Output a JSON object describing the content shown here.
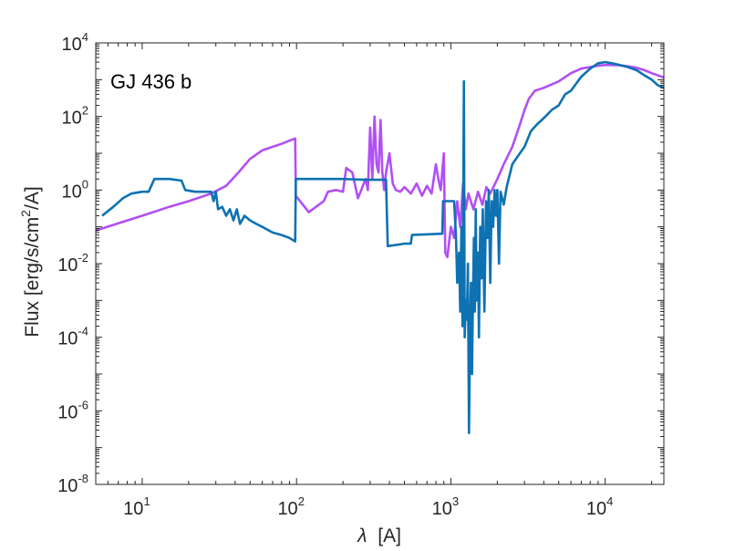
{
  "chart_data": {
    "type": "line",
    "title": "",
    "annotation": "GJ 436 b",
    "xlabel_symbol": "λ",
    "xlabel_unit": "[A]",
    "ylabel_main": "Flux [erg/s/cm",
    "ylabel_sup": "2",
    "ylabel_tail": "/A]",
    "xscale": "log",
    "yscale": "log",
    "xlim": [
      5,
      24000
    ],
    "ylim": [
      1e-08,
      10000
    ],
    "grid": false,
    "legend": "none",
    "x_ticks": [
      {
        "base": "10",
        "exp": "1",
        "value": 10
      },
      {
        "base": "10",
        "exp": "2",
        "value": 100
      },
      {
        "base": "10",
        "exp": "3",
        "value": 1000
      },
      {
        "base": "10",
        "exp": "4",
        "value": 10000
      }
    ],
    "y_ticks": [
      {
        "base": "10",
        "exp": "-8",
        "value": 1e-08
      },
      {
        "base": "10",
        "exp": "-6",
        "value": 1e-06
      },
      {
        "base": "10",
        "exp": "-4",
        "value": 0.0001
      },
      {
        "base": "10",
        "exp": "-2",
        "value": 0.01
      },
      {
        "base": "10",
        "exp": "0",
        "value": 1
      },
      {
        "base": "10",
        "exp": "2",
        "value": 100
      },
      {
        "base": "10",
        "exp": "4",
        "value": 10000
      }
    ],
    "series": [
      {
        "color": "#b14ff5",
        "points": [
          [
            5,
            0.08
          ],
          [
            10,
            0.2
          ],
          [
            15,
            0.35
          ],
          [
            20,
            0.5
          ],
          [
            28,
            0.8
          ],
          [
            35,
            1.3
          ],
          [
            42,
            3
          ],
          [
            50,
            7
          ],
          [
            60,
            12
          ],
          [
            70,
            15
          ],
          [
            80,
            18
          ],
          [
            90,
            22
          ],
          [
            98,
            25
          ],
          [
            99,
            0.7
          ],
          [
            120,
            0.25
          ],
          [
            150,
            0.5
          ],
          [
            160,
            0.9
          ],
          [
            180,
            1.0
          ],
          [
            200,
            0.9
          ],
          [
            210,
            4
          ],
          [
            230,
            3
          ],
          [
            250,
            0.6
          ],
          [
            260,
            0.9
          ],
          [
            280,
            2
          ],
          [
            290,
            1
          ],
          [
            300,
            50
          ],
          [
            310,
            2
          ],
          [
            320,
            100
          ],
          [
            330,
            5
          ],
          [
            340,
            3
          ],
          [
            350,
            80
          ],
          [
            360,
            3
          ],
          [
            370,
            1
          ],
          [
            380,
            3
          ],
          [
            400,
            10
          ],
          [
            420,
            1.5
          ],
          [
            440,
            1
          ],
          [
            470,
            0.9
          ],
          [
            500,
            1.2
          ],
          [
            550,
            0.8
          ],
          [
            600,
            1.5
          ],
          [
            650,
            0.7
          ],
          [
            700,
            1.3
          ],
          [
            750,
            0.8
          ],
          [
            800,
            5
          ],
          [
            830,
            2
          ],
          [
            860,
            1
          ],
          [
            900,
            10
          ],
          [
            920,
            0.02
          ],
          [
            950,
            0.015
          ],
          [
            1000,
            0.1
          ],
          [
            1050,
            0.05
          ],
          [
            1100,
            0.5
          ],
          [
            1150,
            0.1
          ],
          [
            1200,
            1.5
          ],
          [
            1250,
            0.3
          ],
          [
            1300,
            0.8
          ],
          [
            1400,
            0.3
          ],
          [
            1500,
            0.9
          ],
          [
            1600,
            0.4
          ],
          [
            1700,
            1.2
          ],
          [
            1800,
            0.8
          ],
          [
            2000,
            2
          ],
          [
            2200,
            5
          ],
          [
            2500,
            15
          ],
          [
            2800,
            60
          ],
          [
            3000,
            150
          ],
          [
            3200,
            300
          ],
          [
            3500,
            500
          ],
          [
            4000,
            600
          ],
          [
            5000,
            900
          ],
          [
            6000,
            1500
          ],
          [
            7000,
            2000
          ],
          [
            8000,
            2200
          ],
          [
            9000,
            2400
          ],
          [
            10000,
            2500
          ],
          [
            12000,
            2500
          ],
          [
            14000,
            2300
          ],
          [
            16000,
            2100
          ],
          [
            18000,
            1800
          ],
          [
            20000,
            1500
          ],
          [
            22000,
            1300
          ],
          [
            24000,
            1150
          ]
        ]
      },
      {
        "color": "#0e72b2",
        "points": [
          [
            5.5,
            0.2
          ],
          [
            6.5,
            0.35
          ],
          [
            7.5,
            0.6
          ],
          [
            8.5,
            0.8
          ],
          [
            10,
            0.9
          ],
          [
            11,
            0.9
          ],
          [
            12,
            2
          ],
          [
            15,
            2
          ],
          [
            18,
            1.8
          ],
          [
            19,
            1.0
          ],
          [
            22,
            0.9
          ],
          [
            25,
            0.9
          ],
          [
            28,
            0.9
          ],
          [
            29,
            0.5
          ],
          [
            30,
            0.9
          ],
          [
            31,
            0.3
          ],
          [
            33,
            0.35
          ],
          [
            35,
            0.2
          ],
          [
            37,
            0.3
          ],
          [
            39,
            0.15
          ],
          [
            41,
            0.3
          ],
          [
            43,
            0.12
          ],
          [
            46,
            0.2
          ],
          [
            50,
            0.15
          ],
          [
            55,
            0.12
          ],
          [
            60,
            0.1
          ],
          [
            70,
            0.07
          ],
          [
            80,
            0.06
          ],
          [
            90,
            0.05
          ],
          [
            98,
            0.04
          ],
          [
            99,
            2
          ],
          [
            200,
            2
          ],
          [
            280,
            1.9
          ],
          [
            290,
            1.9
          ],
          [
            380,
            1.9
          ],
          [
            390,
            0.03
          ],
          [
            500,
            0.035
          ],
          [
            550,
            0.035
          ],
          [
            560,
            0.06
          ],
          [
            880,
            0.065
          ],
          [
            890,
            0.5
          ],
          [
            1000,
            0.5
          ],
          [
            1050,
            0.5
          ],
          [
            1080,
            0.05
          ],
          [
            1100,
            0.003
          ],
          [
            1130,
            0.02
          ],
          [
            1150,
            0.0005
          ],
          [
            1170,
            0.1
          ],
          [
            1190,
            0.0002
          ],
          [
            1200,
            0.05
          ],
          [
            1215,
            900
          ],
          [
            1230,
            0.0001
          ],
          [
            1250,
            0.001
          ],
          [
            1270,
            0.0003
          ],
          [
            1290,
            0.01
          ],
          [
            1310,
            2.5e-07
          ],
          [
            1330,
            0.0001
          ],
          [
            1350,
            0.003
          ],
          [
            1370,
            1e-05
          ],
          [
            1390,
            0.001
          ],
          [
            1410,
            0.05
          ],
          [
            1430,
            0.0005
          ],
          [
            1450,
            0.3
          ],
          [
            1470,
            0.001
          ],
          [
            1500,
            0.02
          ],
          [
            1520,
            0.0001
          ],
          [
            1550,
            0.1
          ],
          [
            1580,
            0.004
          ],
          [
            1610,
            0.3
          ],
          [
            1650,
            0.0005
          ],
          [
            1690,
            0.5
          ],
          [
            1730,
            0.05
          ],
          [
            1760,
            1
          ],
          [
            1800,
            0.003
          ],
          [
            1840,
            0.5
          ],
          [
            1880,
            0.1
          ],
          [
            1920,
            1
          ],
          [
            1960,
            0.2
          ],
          [
            2000,
            1
          ],
          [
            2050,
            0.01
          ],
          [
            2100,
            0.9
          ],
          [
            2200,
            0.4
          ],
          [
            2300,
            1.2
          ],
          [
            2500,
            5
          ],
          [
            2700,
            8
          ],
          [
            3000,
            15
          ],
          [
            3300,
            40
          ],
          [
            3600,
            60
          ],
          [
            4000,
            90
          ],
          [
            4500,
            150
          ],
          [
            5000,
            200
          ],
          [
            5500,
            400
          ],
          [
            6000,
            500
          ],
          [
            7000,
            1200
          ],
          [
            8000,
            2000
          ],
          [
            9000,
            2800
          ],
          [
            10000,
            3000
          ],
          [
            11000,
            2800
          ],
          [
            12000,
            2600
          ],
          [
            14000,
            2200
          ],
          [
            16000,
            1800
          ],
          [
            18000,
            1300
          ],
          [
            20000,
            1000
          ],
          [
            22000,
            700
          ],
          [
            24000,
            600
          ]
        ]
      }
    ]
  }
}
